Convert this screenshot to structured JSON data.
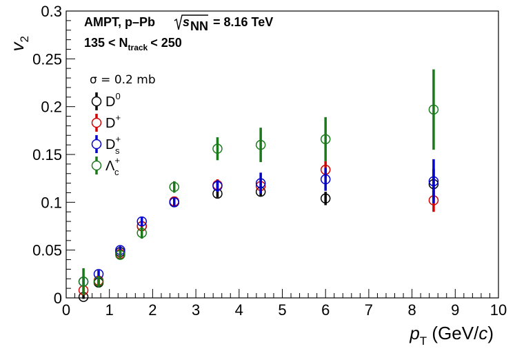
{
  "chart_data": {
    "type": "scatter",
    "xlabel": "p_T (GeV/c)",
    "ylabel": "v_2",
    "xlim": [
      0,
      10
    ],
    "ylim": [
      0,
      0.3
    ],
    "x_ticks": [
      "0",
      "1",
      "2",
      "3",
      "4",
      "5",
      "6",
      "7",
      "8",
      "9",
      "10"
    ],
    "y_ticks": [
      "0",
      "0.05",
      "0.1",
      "0.15",
      "0.2",
      "0.25",
      "0.3"
    ],
    "header": {
      "line1_prefix": "AMPT, p–Pb",
      "sqrt_s_label": "s",
      "sqrt_s_sub": "NN",
      "line1_suffix": "= 8.16 TeV",
      "line2_prefix": "135 < N",
      "line2_sub": "track",
      "line2_suffix": "< 250"
    },
    "legend_header": "σ = 0.2 mb",
    "series": [
      {
        "name": "D0",
        "label_base": "D",
        "label_sup": "0",
        "label_sub": "",
        "color": "#000000",
        "x": [
          0.4,
          0.75,
          1.25,
          1.75,
          2.5,
          3.5,
          4.5,
          6.0,
          8.5
        ],
        "y": [
          0.001,
          0.016,
          0.048,
          0.075,
          0.1,
          0.109,
          0.111,
          0.104,
          0.119
        ],
        "err": [
          0.002,
          0.004,
          0.004,
          0.004,
          0.003,
          0.004,
          0.005,
          0.007,
          0.016
        ]
      },
      {
        "name": "D+",
        "label_base": "D",
        "label_sup": "+",
        "label_sub": "",
        "color": "#d40000",
        "x": [
          0.4,
          0.75,
          1.25,
          1.75,
          2.5,
          3.5,
          4.5,
          6.0,
          8.5
        ],
        "y": [
          0.008,
          0.018,
          0.046,
          0.075,
          0.101,
          0.118,
          0.117,
          0.134,
          0.102
        ],
        "err": [
          0.004,
          0.005,
          0.005,
          0.005,
          0.004,
          0.006,
          0.007,
          0.009,
          0.012
        ]
      },
      {
        "name": "Ds+",
        "label_base": "D",
        "label_sup": "+",
        "label_sub": "s",
        "color": "#0000cc",
        "x": [
          0.4,
          0.75,
          1.25,
          1.75,
          2.5,
          3.5,
          4.5,
          6.0,
          8.5
        ],
        "y": [
          0.017,
          0.025,
          0.05,
          0.08,
          0.1,
          0.117,
          0.12,
          0.124,
          0.122
        ],
        "err": [
          0.004,
          0.004,
          0.004,
          0.004,
          0.004,
          0.006,
          0.011,
          0.012,
          0.023
        ]
      },
      {
        "name": "Λc+",
        "label_base": "Λ",
        "label_sup": "+",
        "label_sub": "c",
        "color": "#1a7a1a",
        "x": [
          0.4,
          0.75,
          1.25,
          1.75,
          2.5,
          3.5,
          4.5,
          6.0,
          8.5
        ],
        "y": [
          0.017,
          0.017,
          0.045,
          0.068,
          0.116,
          0.156,
          0.16,
          0.166,
          0.197
        ],
        "err": [
          0.014,
          0.006,
          0.005,
          0.006,
          0.006,
          0.012,
          0.018,
          0.023,
          0.042
        ]
      }
    ]
  }
}
